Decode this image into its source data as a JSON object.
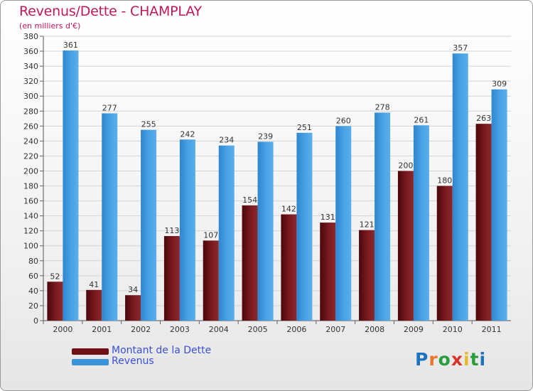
{
  "chart_data": {
    "type": "bar",
    "title": "Revenus/Dette - CHAMPLAY",
    "subtitle": "(en milliers d'€)",
    "categories": [
      "2000",
      "2001",
      "2002",
      "2003",
      "2004",
      "2005",
      "2006",
      "2007",
      "2008",
      "2009",
      "2010",
      "2011"
    ],
    "series": [
      {
        "name": "Montant de la Dette",
        "values": [
          52,
          41,
          34,
          113,
          107,
          154,
          142,
          131,
          121,
          200,
          180,
          263
        ],
        "color": "#6e1016"
      },
      {
        "name": "Revenus",
        "values": [
          361,
          277,
          255,
          242,
          234,
          239,
          251,
          260,
          278,
          261,
          357,
          309
        ],
        "color": "#3a94d9"
      }
    ],
    "ylim": [
      0,
      380
    ],
    "yticks": [
      0,
      20,
      40,
      60,
      80,
      100,
      120,
      140,
      160,
      180,
      200,
      220,
      240,
      260,
      280,
      300,
      320,
      340,
      360,
      380
    ],
    "grid": true,
    "legend": "bottom-left"
  },
  "logo": {
    "text": "Proxiti",
    "letters": [
      "P",
      "r",
      "o",
      "x",
      "i",
      "t",
      "i"
    ],
    "colors": [
      "#1e73be",
      "#e8762c",
      "#2a9d3c",
      "#d8332a",
      "#e8b72c",
      "#2a9d3c",
      "#1e73be"
    ]
  }
}
